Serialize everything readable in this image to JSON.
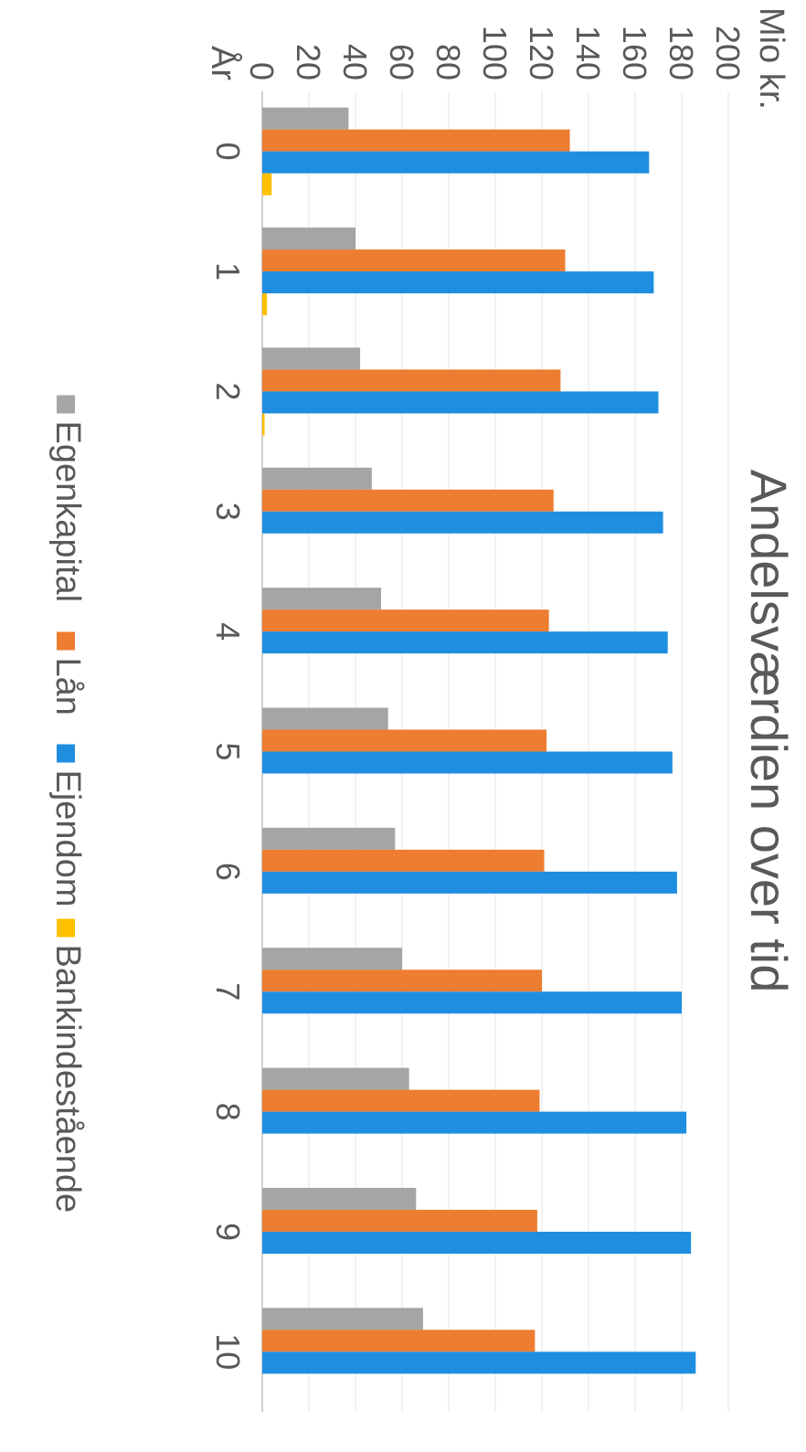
{
  "chart_data": {
    "type": "bar",
    "title": "Andelsværdien over tid",
    "ylabel": "Mio kr.",
    "xlabel": "År",
    "categories": [
      "0",
      "1",
      "2",
      "3",
      "4",
      "5",
      "6",
      "7",
      "8",
      "9",
      "10"
    ],
    "ylim": [
      0,
      200
    ],
    "yticks": [
      0,
      20,
      40,
      60,
      80,
      100,
      120,
      140,
      160,
      180,
      200
    ],
    "grid": true,
    "legend_position": "bottom",
    "series": [
      {
        "name": "Egenkapital",
        "color": "#A5A5A5",
        "values": [
          37,
          40,
          42,
          47,
          51,
          54,
          57,
          60,
          63,
          66,
          69
        ]
      },
      {
        "name": "Lån",
        "color": "#ED7D31",
        "values": [
          132,
          130,
          128,
          125,
          123,
          122,
          121,
          120,
          119,
          118,
          117
        ]
      },
      {
        "name": "Ejendom",
        "color": "#1F8EE0",
        "values": [
          166,
          168,
          170,
          172,
          174,
          176,
          178,
          180,
          182,
          184,
          186
        ]
      },
      {
        "name": "Bankindestående",
        "color": "#FFC000",
        "values": [
          4,
          2,
          1,
          0,
          0,
          0,
          0,
          0,
          0,
          0,
          0
        ]
      }
    ]
  }
}
